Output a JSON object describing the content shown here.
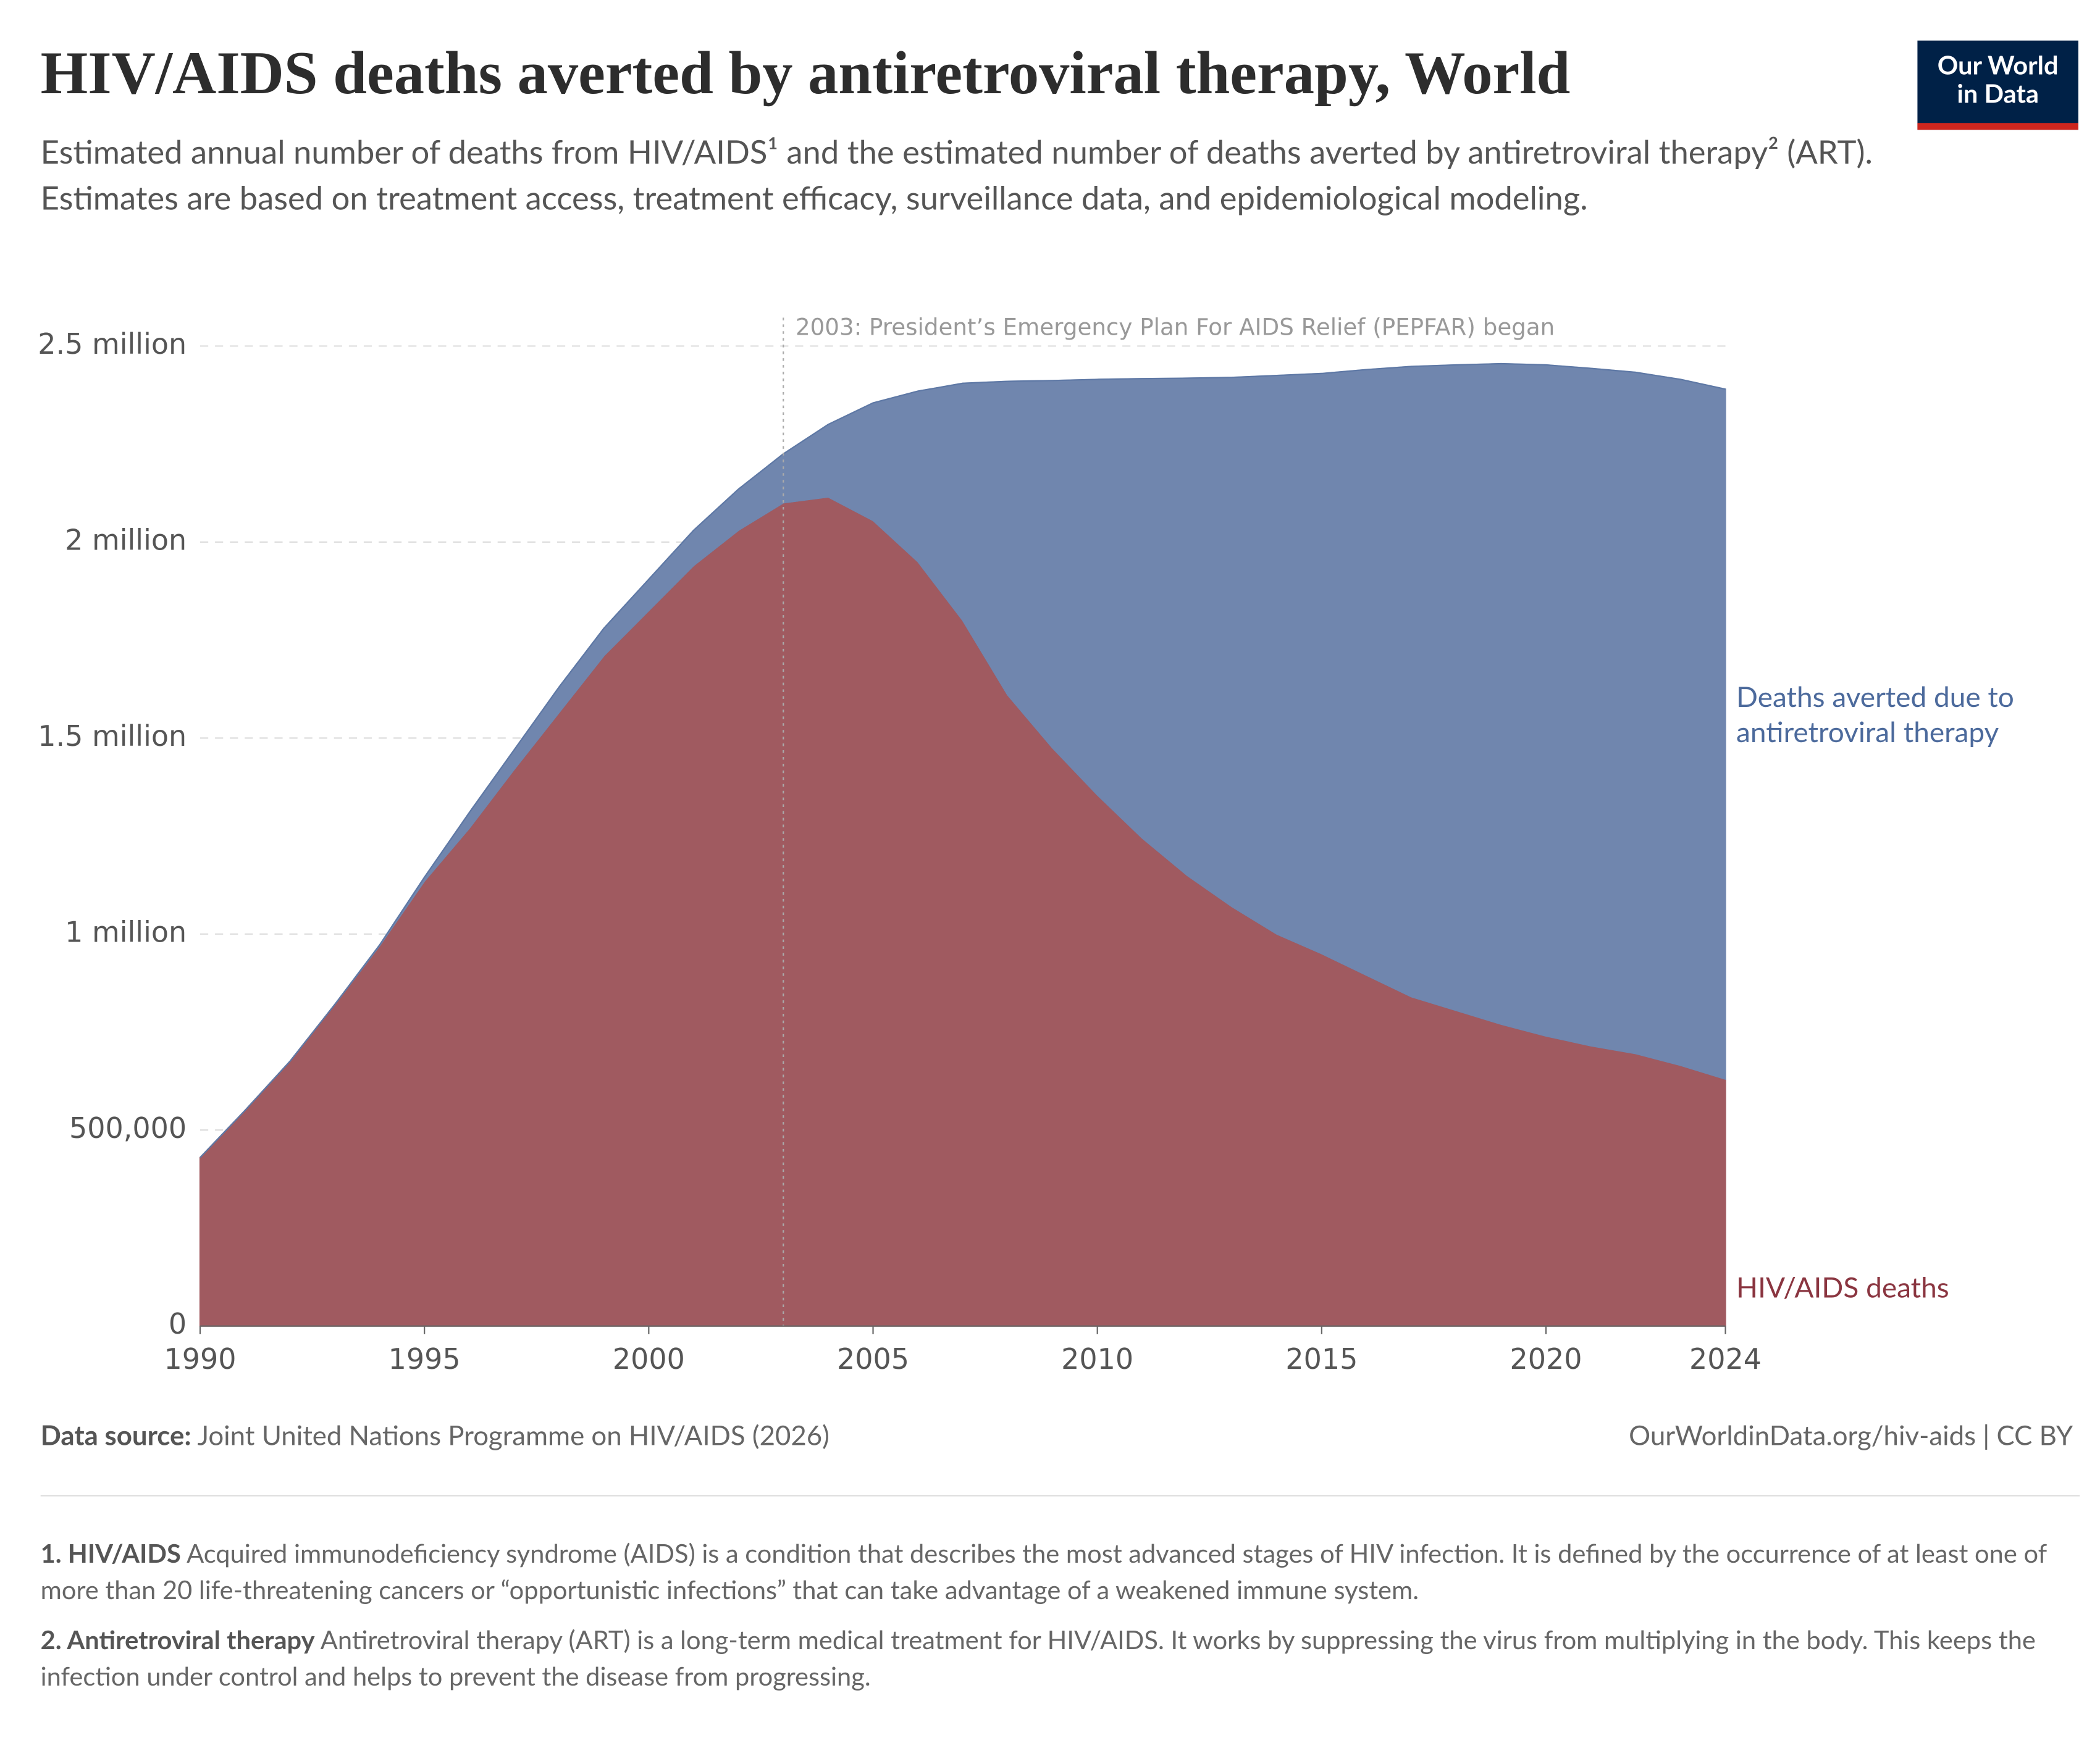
{
  "title": "HIV/AIDS deaths averted by antiretroviral therapy, World",
  "logo": {
    "line1": "Our World",
    "line2": "in Data"
  },
  "subtitle": "Estimated annual number of deaths from HIV/AIDS¹ and the estimated number of deaths averted by antiretroviral therapy² (ART). Estimates are based on treatment access, treatment efficacy, surveillance data, and epidemiological modeling.",
  "chart_data": {
    "type": "area",
    "stacked": true,
    "x": [
      1990,
      1991,
      1992,
      1993,
      1994,
      1995,
      1996,
      1997,
      1998,
      1999,
      2000,
      2001,
      2002,
      2003,
      2004,
      2005,
      2006,
      2007,
      2008,
      2009,
      2010,
      2011,
      2012,
      2013,
      2014,
      2015,
      2016,
      2017,
      2018,
      2019,
      2020,
      2021,
      2022,
      2023,
      2024
    ],
    "series": [
      {
        "name": "HIV/AIDS deaths",
        "color": "#a05a60",
        "label_color": "#8a3540",
        "values": [
          430000,
          550000,
          675000,
          820000,
          970000,
          1135000,
          1270000,
          1420000,
          1565000,
          1710000,
          1825000,
          1940000,
          2030000,
          2100000,
          2115000,
          2055000,
          1950000,
          1800000,
          1610000,
          1475000,
          1355000,
          1245000,
          1150000,
          1070000,
          1000000,
          950000,
          895000,
          840000,
          805000,
          770000,
          740000,
          715000,
          695000,
          665000,
          630000
        ]
      },
      {
        "name": "Deaths averted due to antiretroviral therapy",
        "color": "#7086ae",
        "label_color": "#4c6a9c",
        "values": [
          0,
          0,
          0,
          0,
          2000,
          10000,
          40000,
          50000,
          65000,
          70000,
          80000,
          90000,
          105000,
          125000,
          185000,
          300000,
          435000,
          605000,
          800000,
          937000,
          1060000,
          1172000,
          1268000,
          1350000,
          1425000,
          1480000,
          1545000,
          1608000,
          1647000,
          1685000,
          1712000,
          1728000,
          1738000,
          1750000,
          1760000
        ]
      }
    ],
    "xlim": [
      1990,
      2024
    ],
    "xticks": [
      1990,
      1995,
      2000,
      2005,
      2010,
      2015,
      2020,
      2024
    ],
    "ylim": [
      0,
      2500000
    ],
    "yticks": [
      0,
      {
        "value": 500000,
        "label": "500,000"
      },
      {
        "value": 1000000,
        "label": "1 million"
      },
      {
        "value": 1500000,
        "label": "1.5 million"
      },
      {
        "value": 2000000,
        "label": "2 million"
      },
      {
        "value": 2500000,
        "label": "2.5 million"
      }
    ],
    "grid": true,
    "annotation": {
      "x": 2003,
      "text": "2003: President’s Emergency Plan For AIDS Relief (PEPFAR) began"
    }
  },
  "source": {
    "label": "Data source:",
    "text": "Joint United Nations Programme on HIV/AIDS (2026)"
  },
  "url": "OurWorldinData.org/hiv-aids | CC BY",
  "notes": [
    {
      "term": "1. HIV/AIDS",
      "text": "Acquired immunodeficiency syndrome (AIDS) is a condition that describes the most advanced stages of HIV infection. It is defined by the occurrence of at least one of more than 20 life-threatening cancers or “opportunistic infections” that can take advantage of a weakened immune system."
    },
    {
      "term": "2. Antiretroviral therapy",
      "text": "Antiretroviral therapy (ART) is a long-term medical treatment for HIV/AIDS. It works by suppressing the virus from multiplying in the body. This keeps the infection under control and helps to prevent the disease from progressing."
    }
  ]
}
